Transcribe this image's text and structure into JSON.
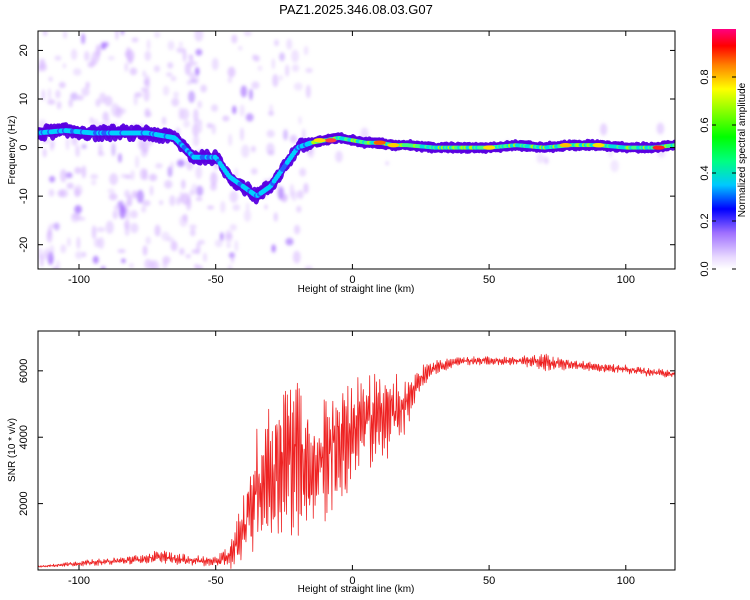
{
  "title": "PAZ1.2025.346.08.03.G07",
  "colors": {
    "snr_line": "#ee2222",
    "band_core": "#00d0ff",
    "band_edge": "#5a00e0",
    "speckle": "#d8b8ff"
  },
  "chart_data": [
    {
      "type": "heatmap",
      "name": "spectrogram",
      "xlabel": "Height of straight line (km)",
      "ylabel": "Frequency (Hz)",
      "xlim": [
        -115,
        118
      ],
      "ylim": [
        -25,
        24
      ],
      "xticks": [
        -100,
        -50,
        0,
        50,
        100
      ],
      "xtick_labels": [
        "-100",
        "-50",
        "0",
        "50",
        "100"
      ],
      "yticks": [
        20,
        10,
        0,
        -10,
        -20
      ],
      "ytick_labels": [
        "20",
        "10",
        "0",
        "-10",
        "-20"
      ],
      "ridge": {
        "x": [
          -115,
          -105,
          -95,
          -85,
          -75,
          -65,
          -58,
          -50,
          -45,
          -40,
          -35,
          -30,
          -25,
          -20,
          -15,
          -10,
          -5,
          0,
          5,
          10,
          15,
          20,
          30,
          40,
          50,
          60,
          70,
          80,
          90,
          100,
          110,
          118
        ],
        "freq": [
          3,
          3.5,
          3,
          3,
          3,
          2,
          -2,
          -2,
          -6,
          -8,
          -10,
          -8,
          -4,
          0,
          1,
          1.5,
          2,
          1.5,
          1,
          1,
          0.5,
          0.5,
          0,
          0,
          0,
          0.5,
          0,
          0.5,
          0.5,
          0,
          0,
          0.5
        ]
      },
      "colorbar": {
        "label": "Normalized spectral amplitude",
        "range": [
          0,
          1
        ],
        "ticks": [
          0.0,
          0.2,
          0.4,
          0.6,
          0.8
        ],
        "tick_labels": [
          "0.0",
          "0.2",
          "0.4",
          "0.6",
          "0.8"
        ]
      }
    },
    {
      "type": "line",
      "name": "snr",
      "xlabel": "Height of straight line (km)",
      "ylabel": "SNR (10 * v/v)",
      "xlim": [
        -115,
        118
      ],
      "ylim": [
        0,
        7200
      ],
      "xticks": [
        -100,
        -50,
        0,
        50,
        100
      ],
      "xtick_labels": [
        "-100",
        "-50",
        "0",
        "50",
        "100"
      ],
      "yticks": [
        2000,
        4000,
        6000
      ],
      "ytick_labels": [
        "2000",
        "4000",
        "6000"
      ],
      "x": [
        -115,
        -100,
        -80,
        -70,
        -60,
        -50,
        -45,
        -40,
        -35,
        -30,
        -25,
        -20,
        -15,
        -10,
        -5,
        0,
        5,
        10,
        15,
        20,
        25,
        30,
        40,
        50,
        60,
        70,
        80,
        90,
        100,
        110,
        118
      ],
      "y": [
        100,
        200,
        300,
        400,
        300,
        250,
        400,
        1200,
        2500,
        3000,
        3400,
        3600,
        3000,
        3500,
        3800,
        4200,
        4500,
        4600,
        4700,
        5000,
        5800,
        6100,
        6300,
        6300,
        6300,
        6250,
        6200,
        6100,
        6050,
        5950,
        5900
      ],
      "amplitude": [
        20,
        60,
        100,
        150,
        120,
        100,
        300,
        700,
        1400,
        1700,
        1800,
        1900,
        1400,
        1500,
        1500,
        1300,
        1100,
        1000,
        900,
        600,
        300,
        150,
        100,
        100,
        100,
        200,
        120,
        100,
        100,
        100,
        100
      ]
    }
  ]
}
